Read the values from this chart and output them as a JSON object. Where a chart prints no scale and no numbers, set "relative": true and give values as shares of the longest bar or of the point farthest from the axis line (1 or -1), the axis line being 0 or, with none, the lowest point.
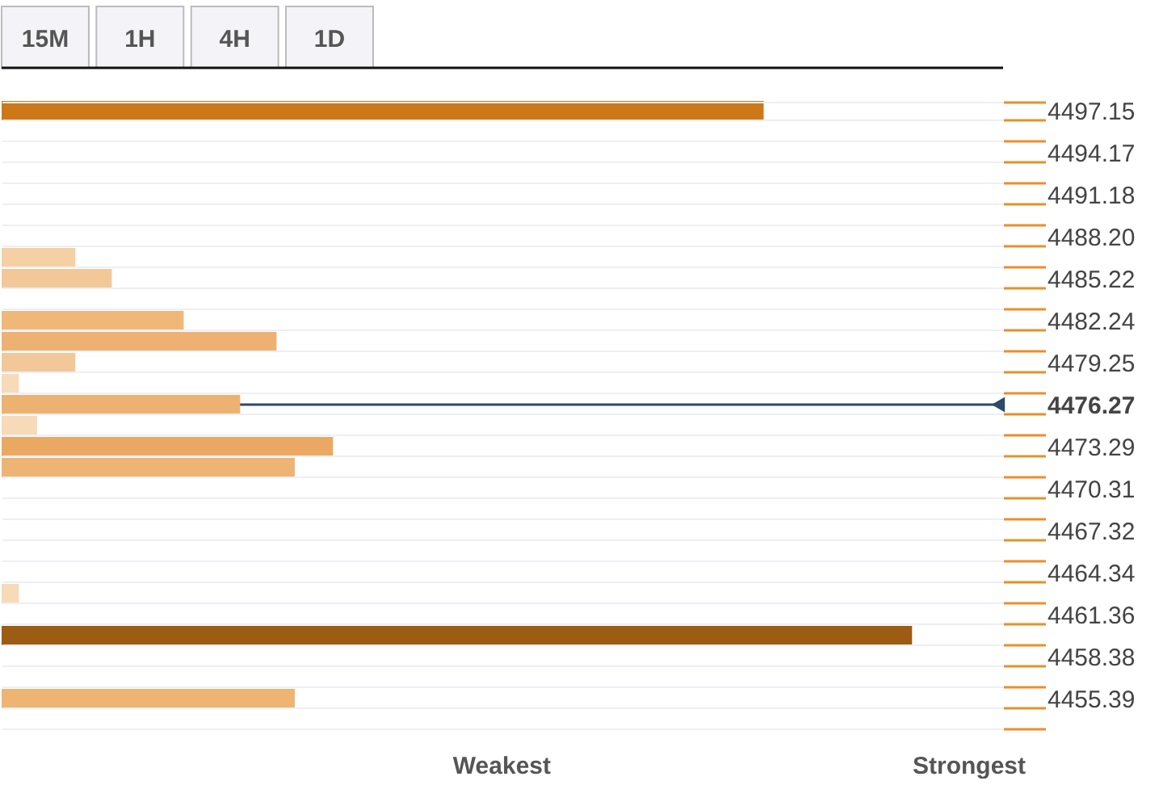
{
  "chart_data": {
    "type": "bar",
    "orientation": "horizontal",
    "relative": true,
    "categories": [
      "4497.15",
      null,
      "4494.17",
      null,
      "4491.18",
      null,
      "4488.20",
      null,
      "4485.22",
      null,
      "4482.24",
      null,
      "4479.25",
      null,
      "4476.27",
      null,
      "4473.29",
      null,
      "4470.31",
      null,
      "4467.32",
      null,
      "4464.34",
      null,
      "4461.36",
      null,
      "4458.38",
      null,
      "4455.39",
      null
    ],
    "values": [
      0.837,
      null,
      null,
      null,
      null,
      null,
      null,
      0.081,
      0.121,
      null,
      0.2,
      0.302,
      0.081,
      0.019,
      0.262,
      0.039,
      0.364,
      0.322,
      null,
      null,
      null,
      null,
      null,
      0.019,
      null,
      1.0,
      null,
      null,
      0.322,
      null
    ],
    "colors": [
      "#cd7818",
      null,
      null,
      null,
      null,
      null,
      null,
      "#f5d0a4",
      "#f3c898",
      null,
      "#efb878",
      "#edb271",
      "#f3c898",
      "#f7dab8",
      "#edb271",
      "#f7dab8",
      "#eba862",
      "#eeb473",
      null,
      null,
      null,
      null,
      null,
      "#f7dab8",
      null,
      "#9c5c14",
      null,
      null,
      "#eeb473",
      null
    ],
    "ref_lines": [
      {
        "axis": "y",
        "value": "4476.27",
        "color": "#2d4a6b"
      }
    ],
    "grid": "y",
    "annotations": [
      "15M",
      "1H",
      "4H",
      "1D",
      "Weakest",
      "Strongest"
    ]
  }
}
